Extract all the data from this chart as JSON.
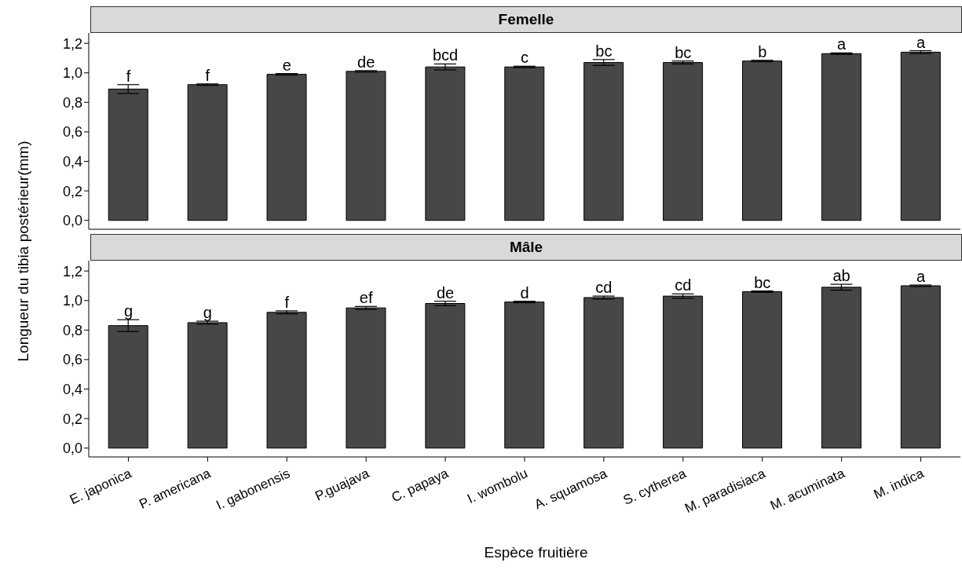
{
  "chart_data": [
    {
      "type": "bar",
      "title": "Femelle",
      "ylabel": "Longueur du tibia postérieur(mm)",
      "tick_labels": "y",
      "color": "#474747",
      "categories": [
        "E. japonica",
        "P. americana",
        "I. gabonensis",
        "P.guajava",
        "C. papaya",
        "I. wombolu",
        "A. squamosa",
        "S. cytherea",
        "M. paradisiaca",
        "M. acuminata",
        "M. indica"
      ],
      "values": [
        0.89,
        0.92,
        0.99,
        1.01,
        1.04,
        1.04,
        1.07,
        1.07,
        1.08,
        1.13,
        1.14
      ],
      "errors": [
        0.03,
        0.005,
        0.005,
        0.005,
        0.02,
        0.005,
        0.02,
        0.01,
        0.005,
        0.005,
        0.01
      ],
      "ylim": [
        -0.06,
        1.27
      ],
      "yticks": [
        {
          "value": 0,
          "label": "0,0"
        },
        {
          "value": 0.2,
          "label": "0,2"
        },
        {
          "value": 0.4,
          "label": "0,4"
        },
        {
          "value": 0.6,
          "label": "0,6"
        },
        {
          "value": 0.8,
          "label": "0,8"
        },
        {
          "value": 1.0,
          "label": "1,0"
        },
        {
          "value": 1.2,
          "label": "1,2"
        }
      ],
      "grid": false,
      "legend": false,
      "annotations": [
        {
          "text": "f",
          "x": "E. japonica",
          "y": 0.92
        },
        {
          "text": "f",
          "x": "P. americana",
          "y": 0.925
        },
        {
          "text": "e",
          "x": "I. gabonensis",
          "y": 0.995
        },
        {
          "text": "de",
          "x": "P.guajava",
          "y": 1.015
        },
        {
          "text": "bcd",
          "x": "C. papaya",
          "y": 1.06
        },
        {
          "text": "c",
          "x": "I. wombolu",
          "y": 1.045
        },
        {
          "text": "bc",
          "x": "A. squamosa",
          "y": 1.09
        },
        {
          "text": "bc",
          "x": "S. cytherea",
          "y": 1.08
        },
        {
          "text": "b",
          "x": "M. paradisiaca",
          "y": 1.085
        },
        {
          "text": "a",
          "x": "M. acuminata",
          "y": 1.135
        },
        {
          "text": "a",
          "x": "M. indica",
          "y": 1.15
        }
      ]
    },
    {
      "type": "bar",
      "title": "Mâle",
      "xlabel": "Espèce fruitière",
      "color": "#474747",
      "categories": [
        "E. japonica",
        "P. americana",
        "I. gabonensis",
        "P.guajava",
        "C. papaya",
        "I. wombolu",
        "A. squamosa",
        "S. cytherea",
        "M. paradisiaca",
        "M. acuminata",
        "M. indica"
      ],
      "values": [
        0.83,
        0.85,
        0.92,
        0.95,
        0.98,
        0.99,
        1.02,
        1.03,
        1.06,
        1.09,
        1.1
      ],
      "errors": [
        0.04,
        0.01,
        0.01,
        0.01,
        0.015,
        0.005,
        0.01,
        0.015,
        0.005,
        0.02,
        0.005
      ],
      "ylim": [
        -0.06,
        1.27
      ],
      "yticks": [
        {
          "value": 0,
          "label": "0,0"
        },
        {
          "value": 0.2,
          "label": "0,2"
        },
        {
          "value": 0.4,
          "label": "0,4"
        },
        {
          "value": 0.6,
          "label": "0,6"
        },
        {
          "value": 0.8,
          "label": "0,8"
        },
        {
          "value": 1.0,
          "label": "1,0"
        },
        {
          "value": 1.2,
          "label": "1,2"
        }
      ],
      "grid": false,
      "legend": false,
      "annotations": [
        {
          "text": "g",
          "x": "E. japonica",
          "y": 0.87
        },
        {
          "text": "g",
          "x": "P. americana",
          "y": 0.86
        },
        {
          "text": "f",
          "x": "I. gabonensis",
          "y": 0.93
        },
        {
          "text": "ef",
          "x": "P.guajava",
          "y": 0.96
        },
        {
          "text": "de",
          "x": "C. papaya",
          "y": 0.995
        },
        {
          "text": "d",
          "x": "I. wombolu",
          "y": 0.995
        },
        {
          "text": "cd",
          "x": "A. squamosa",
          "y": 1.03
        },
        {
          "text": "cd",
          "x": "S. cytherea",
          "y": 1.045
        },
        {
          "text": "bc",
          "x": "M. paradisiaca",
          "y": 1.065
        },
        {
          "text": "ab",
          "x": "M. acuminata",
          "y": 1.11
        },
        {
          "text": "a",
          "x": "M. indica",
          "y": 1.105
        }
      ]
    }
  ]
}
